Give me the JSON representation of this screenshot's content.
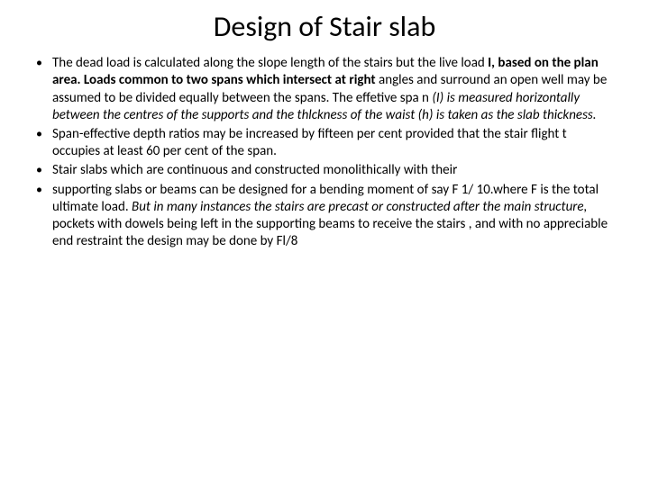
{
  "title": "Design of Stair slab",
  "bullets": [
    {
      "runs": [
        {
          "t": "The dead load is calculated along the slope length of the stairs but the live load "
        },
        {
          "t": "I, based on the plan area. Loads common to two spans which intersect at right ",
          "b": true
        },
        {
          "t": "angles and surround an open well may be assumed to be divided equally between the spans. The effetive spa n "
        },
        {
          "t": "(I) is measured horizontally between the centres of the supports and the thlckness of the waist (h) is taken as the slab thickness.",
          "i": true
        }
      ]
    },
    {
      "runs": [
        {
          "t": "Span-effective depth ratios may be increased by fifteen per cent provided that the stair flight t occupies at least 60 per cent of the span."
        }
      ]
    },
    {
      "runs": [
        {
          "t": "Stair slabs which are continuous and constructed monolithically with their"
        }
      ]
    },
    {
      "runs": [
        {
          "t": "supporting slabs or beams can be designed for a bending moment of say F 1/ 10.where F is the total ultimate load. "
        },
        {
          "t": "But in many instances the stairs are precast or constructed after the main structure,",
          "i": true
        },
        {
          "t": " pockets with dowels being left in the supporting beams to receive the stairs , and with no appreciable end restraint the design may be done by Fl/8"
        }
      ]
    }
  ]
}
